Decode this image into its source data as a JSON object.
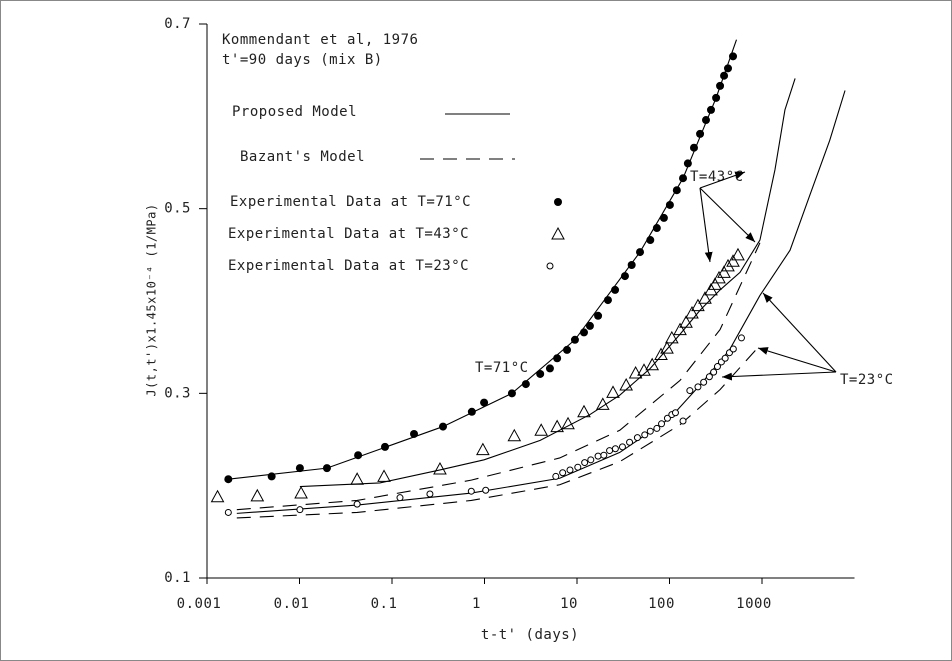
{
  "chart_data": {
    "type": "scatter",
    "title": "Kommendant et al, 1976",
    "subtitle": "t'=90 days (mix B)",
    "xlabel": "t-t' (days)",
    "ylabel": "J(t,t')x1.45x10⁻⁴ (1/MPa)",
    "xscale": "log",
    "xlim": [
      0.001,
      10000
    ],
    "xticks": [
      0.001,
      0.01,
      0.1,
      1,
      10,
      100,
      1000
    ],
    "ylim": [
      0.1,
      0.7
    ],
    "yticks": [
      0.1,
      0.3,
      0.5,
      0.7
    ],
    "grid": false,
    "color": "#000000",
    "series": [
      {
        "name": "Proposed Model",
        "style": "solid",
        "curves": [
          {
            "x": [
              0.0017,
              0.0198,
              0.356,
              1.98,
              9.5,
              48,
              140,
              319,
              530
            ],
            "values": [
              0.207,
              0.219,
              0.264,
              0.3,
              0.358,
              0.453,
              0.533,
              0.62,
              0.683
            ]
          },
          {
            "x": [
              0.0101,
              0.074,
              0.33,
              0.99,
              4.0,
              13.8,
              29,
              62,
              130,
              214,
              352,
              578,
              950,
              1380,
              1770,
              2280
            ],
            "values": [
              0.199,
              0.203,
              0.217,
              0.228,
              0.249,
              0.277,
              0.298,
              0.327,
              0.364,
              0.39,
              0.412,
              0.431,
              0.466,
              0.542,
              0.607,
              0.641
            ]
          },
          {
            "x": [
              0.0021,
              0.042,
              0.72,
              6.5,
              29,
              101,
              214,
              445,
              950,
              2010,
              3300,
              5400,
              7900
            ],
            "values": [
              0.17,
              0.179,
              0.192,
              0.208,
              0.236,
              0.273,
              0.309,
              0.347,
              0.406,
              0.455,
              0.515,
              0.574,
              0.628
            ]
          }
        ]
      },
      {
        "name": "Bazant's Model",
        "style": "dashed",
        "curves": [
          {
            "x": [
              0.0021,
              0.042,
              0.72,
              6.5,
              29,
              130,
              352,
              950
            ],
            "values": [
              0.174,
              0.184,
              0.206,
              0.23,
              0.26,
              0.314,
              0.369,
              0.463
            ]
          },
          {
            "x": [
              0.0021,
              0.042,
              0.72,
              6.5,
              29,
              130,
              352,
              950
            ],
            "values": [
              0.165,
              0.171,
              0.184,
              0.201,
              0.226,
              0.266,
              0.304,
              0.352
            ]
          }
        ]
      },
      {
        "name": "Experimental Data at T=71°C",
        "marker": "filled-circle",
        "x": [
          0.0017,
          0.005,
          0.0101,
          0.0198,
          0.043,
          0.084,
          0.173,
          0.356,
          0.73,
          0.99,
          1.98,
          2.8,
          4.0,
          5.1,
          6.1,
          7.8,
          9.5,
          11.9,
          13.8,
          16.9,
          21.6,
          25.8,
          33,
          39,
          48,
          62,
          73,
          87,
          101,
          120,
          140,
          158,
          184,
          214,
          248,
          281,
          319,
          352,
          389,
          429,
          486
        ],
        "values": [
          0.207,
          0.21,
          0.219,
          0.219,
          0.233,
          0.242,
          0.256,
          0.264,
          0.28,
          0.29,
          0.3,
          0.31,
          0.321,
          0.327,
          0.338,
          0.347,
          0.358,
          0.366,
          0.373,
          0.384,
          0.401,
          0.412,
          0.427,
          0.439,
          0.453,
          0.466,
          0.479,
          0.49,
          0.504,
          0.52,
          0.533,
          0.549,
          0.566,
          0.581,
          0.596,
          0.607,
          0.62,
          0.633,
          0.644,
          0.652,
          0.665
        ]
      },
      {
        "name": "Experimental Data at T=43°C",
        "marker": "triangle",
        "x": [
          0.0013,
          0.0035,
          0.0104,
          0.042,
          0.082,
          0.33,
          0.96,
          2.1,
          4.1,
          6.1,
          8.0,
          11.9,
          19,
          24.5,
          34,
          43,
          53,
          65,
          81,
          94,
          106,
          130,
          151,
          175,
          203,
          242,
          281,
          310,
          343,
          388,
          429,
          486,
          550
        ],
        "values": [
          0.188,
          0.189,
          0.192,
          0.207,
          0.21,
          0.218,
          0.239,
          0.254,
          0.26,
          0.264,
          0.267,
          0.28,
          0.288,
          0.301,
          0.309,
          0.322,
          0.325,
          0.331,
          0.342,
          0.349,
          0.36,
          0.369,
          0.377,
          0.387,
          0.395,
          0.403,
          0.412,
          0.418,
          0.425,
          0.431,
          0.438,
          0.443,
          0.45
        ]
      },
      {
        "name": "Experimental Data at T=23°C",
        "marker": "open-circle",
        "x": [
          0.0017,
          0.0101,
          0.042,
          0.122,
          0.257,
          0.72,
          1.03,
          5.9,
          7.0,
          8.4,
          10.2,
          12.1,
          14.1,
          16.9,
          19.5,
          22.5,
          26,
          31,
          37,
          45,
          54,
          62,
          73,
          82,
          95,
          106,
          116,
          140,
          166,
          203,
          234,
          270,
          300,
          330,
          364,
          400,
          445,
          490,
          600
        ],
        "values": [
          0.171,
          0.174,
          0.18,
          0.187,
          0.191,
          0.194,
          0.195,
          0.21,
          0.214,
          0.217,
          0.22,
          0.225,
          0.228,
          0.232,
          0.233,
          0.238,
          0.24,
          0.242,
          0.247,
          0.252,
          0.255,
          0.259,
          0.262,
          0.267,
          0.273,
          0.277,
          0.279,
          0.27,
          0.303,
          0.307,
          0.312,
          0.318,
          0.323,
          0.329,
          0.334,
          0.338,
          0.344,
          0.348,
          0.36
        ]
      }
    ],
    "annotations": [
      "T=71°C",
      "T=43°C",
      "T=23°C"
    ]
  }
}
